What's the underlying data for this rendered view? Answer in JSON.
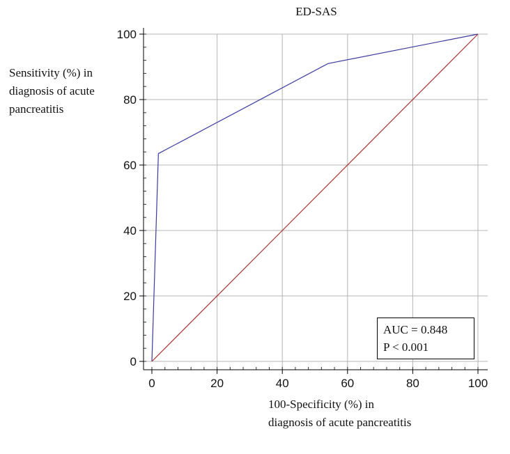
{
  "chart_data": {
    "type": "line",
    "title": "ED-SAS",
    "xlabel": "100-Specificity (%) in diagnosis of acute pancreatitis",
    "ylabel": "Sensitivity (%) in diagnosis of acute pancreatitis",
    "xlim": [
      0,
      100
    ],
    "ylim": [
      0,
      100
    ],
    "xticks": [
      0,
      20,
      40,
      60,
      80,
      100
    ],
    "yticks": [
      0,
      20,
      40,
      60,
      80,
      100
    ],
    "grid": true,
    "series": [
      {
        "color": "#3a3aa0",
        "points": [
          [
            0,
            0
          ],
          [
            2,
            63.5
          ],
          [
            54,
            91
          ],
          [
            100,
            100
          ]
        ]
      },
      {
        "color": "#a83232",
        "points": [
          [
            0,
            0
          ],
          [
            100,
            100
          ]
        ]
      }
    ],
    "annotation": {
      "lines": [
        "AUC = 0.848",
        "P < 0.001"
      ],
      "position": "bottom-right"
    }
  }
}
